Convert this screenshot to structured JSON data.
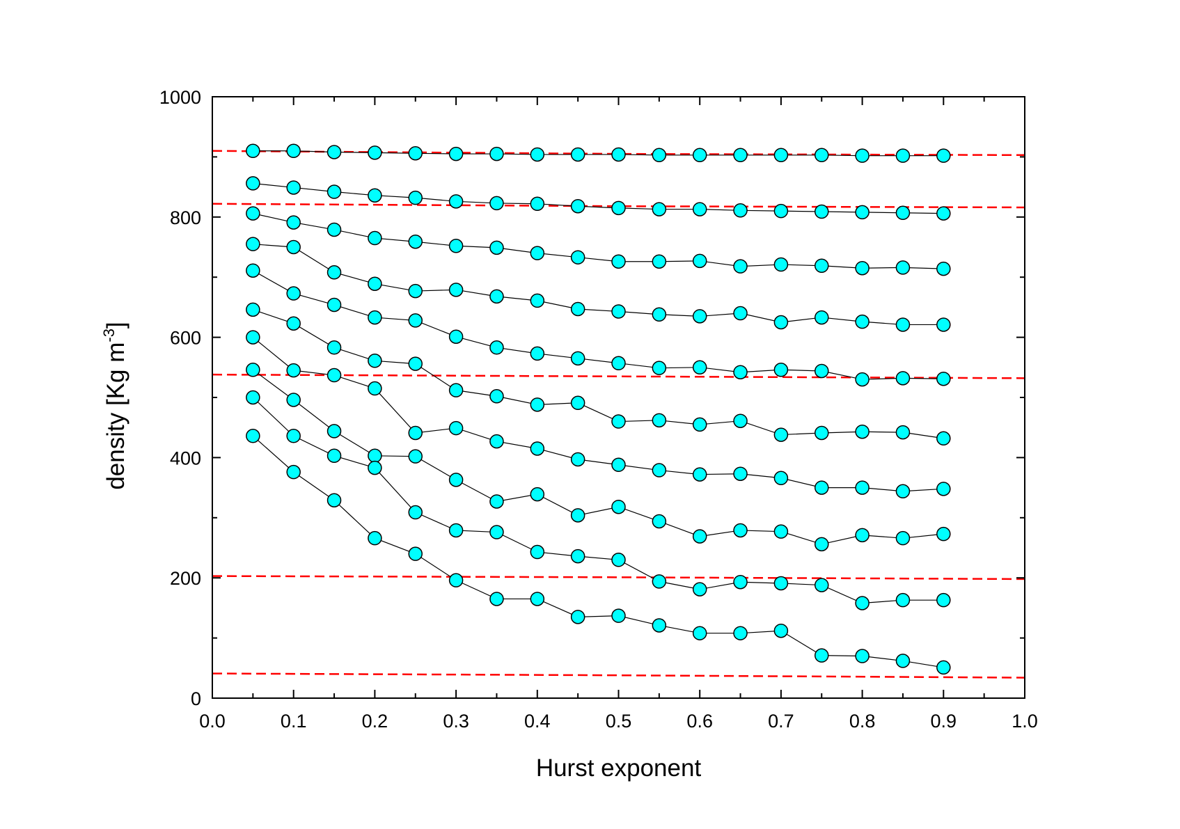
{
  "chart_data": {
    "type": "scatter",
    "xlabel": "Hurst exponent",
    "ylabel": {
      "prefix": "density [Kg m",
      "superscript": "-3",
      "suffix": "]"
    },
    "xlim": [
      0.0,
      1.0
    ],
    "ylim": [
      0,
      1000
    ],
    "x_ticks": [
      "0.0",
      "0.1",
      "0.2",
      "0.3",
      "0.4",
      "0.5",
      "0.6",
      "0.7",
      "0.8",
      "0.9",
      "1.0"
    ],
    "y_ticks": [
      "0",
      "200",
      "400",
      "600",
      "800",
      "1000"
    ],
    "grid": false,
    "legend": "none",
    "colors": {
      "marker_fill": "#00FFFF",
      "marker_edge": "#000000",
      "series_line": "#000000",
      "reference_line": "#FF0000"
    },
    "x": [
      0.05,
      0.1,
      0.15,
      0.2,
      0.25,
      0.3,
      0.35,
      0.4,
      0.45,
      0.5,
      0.55,
      0.6,
      0.65,
      0.7,
      0.75,
      0.8,
      0.85,
      0.9
    ],
    "series": [
      {
        "values": [
          910,
          910,
          908,
          907,
          906,
          905,
          905,
          904,
          904,
          904,
          903,
          903,
          903,
          903,
          903,
          902,
          902,
          902
        ]
      },
      {
        "values": [
          856,
          849,
          842,
          836,
          832,
          826,
          823,
          822,
          818,
          815,
          813,
          813,
          811,
          810,
          809,
          808,
          807,
          806
        ]
      },
      {
        "values": [
          806,
          791,
          779,
          765,
          759,
          752,
          749,
          740,
          733,
          726,
          726,
          727,
          718,
          721,
          719,
          715,
          716,
          714
        ]
      },
      {
        "values": [
          755,
          750,
          708,
          689,
          677,
          679,
          668,
          661,
          647,
          643,
          638,
          635,
          640,
          625,
          633,
          626,
          621,
          621
        ]
      },
      {
        "values": [
          711,
          673,
          654,
          633,
          628,
          601,
          583,
          573,
          565,
          557,
          549,
          550,
          542,
          546,
          544,
          530,
          532,
          531
        ]
      },
      {
        "values": [
          646,
          623,
          583,
          561,
          556,
          512,
          502,
          488,
          491,
          460,
          462,
          455,
          461,
          438,
          441,
          443,
          442,
          432
        ]
      },
      {
        "values": [
          600,
          545,
          537,
          515,
          441,
          449,
          427,
          415,
          397,
          388,
          379,
          372,
          373,
          366,
          350,
          350,
          344,
          348
        ]
      },
      {
        "values": [
          546,
          496,
          444,
          403,
          402,
          363,
          327,
          339,
          304,
          318,
          294,
          269,
          279,
          277,
          256,
          271,
          266,
          273
        ]
      },
      {
        "values": [
          500,
          436,
          403,
          383,
          309,
          279,
          276,
          243,
          236,
          230,
          194,
          181,
          193,
          191,
          188,
          158,
          163,
          163
        ]
      },
      {
        "values": [
          436,
          376,
          329,
          266,
          240,
          196,
          165,
          165,
          135,
          137,
          121,
          108,
          108,
          112,
          71,
          70,
          62,
          51
        ]
      }
    ],
    "reference_lines": [
      {
        "x": [
          0.0,
          0.5,
          1.0
        ],
        "y": [
          910,
          905,
          903
        ]
      },
      {
        "x": [
          0.0,
          0.5,
          1.0
        ],
        "y": [
          822,
          818,
          816
        ]
      },
      {
        "x": [
          0.0,
          0.5,
          1.0
        ],
        "y": [
          538,
          535,
          532
        ]
      },
      {
        "x": [
          0.0,
          0.5,
          1.0
        ],
        "y": [
          203,
          201,
          198
        ]
      },
      {
        "x": [
          0.0,
          0.5,
          1.0
        ],
        "y": [
          41,
          38,
          34
        ]
      }
    ]
  }
}
